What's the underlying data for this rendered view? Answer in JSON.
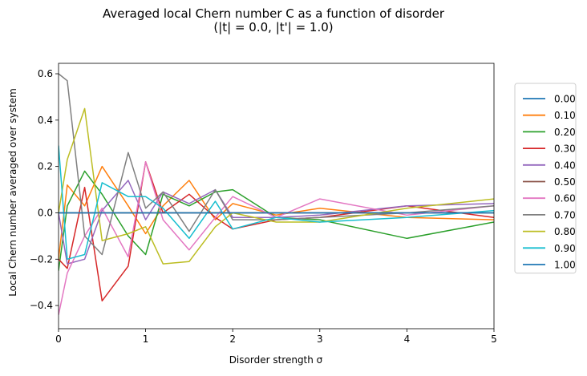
{
  "chart_data": {
    "type": "line",
    "title": "Averaged local Chern number C as a function of disorder",
    "subtitle": "(|t| = 0.0, |t'| = 1.0)",
    "xlabel": "Disorder strength σ",
    "ylabel": "Local Chern number averaged over system",
    "xlim": [
      0,
      5
    ],
    "ylim": [
      -0.5,
      0.645
    ],
    "xticks": [
      "0",
      "1",
      "2",
      "3",
      "4",
      "5"
    ],
    "yticks": [
      "−0.4",
      "−0.2",
      "0.0",
      "0.2",
      "0.4",
      "0.6"
    ],
    "grid": false,
    "legend_position": "right-outside",
    "x": [
      0,
      0.1,
      0.3,
      0.5,
      0.8,
      1.0,
      1.2,
      1.5,
      1.8,
      2.0,
      2.5,
      3.0,
      4.0,
      5.0
    ],
    "series": [
      {
        "name": "0.00",
        "color": "#1f77b4",
        "values": [
          0.0,
          0.0,
          0.0,
          0.0,
          0.0,
          0.0,
          0.0,
          0.0,
          0.0,
          0.0,
          0.0,
          0.0,
          0.0,
          0.0
        ]
      },
      {
        "name": "0.10",
        "color": "#ff7f0e",
        "values": [
          -0.2,
          0.12,
          0.03,
          0.2,
          0.03,
          -0.09,
          0.03,
          0.14,
          -0.03,
          0.04,
          -0.01,
          0.02,
          -0.02,
          -0.03
        ]
      },
      {
        "name": "0.20",
        "color": "#2ca02c",
        "values": [
          -0.25,
          0.03,
          0.18,
          0.08,
          -0.1,
          -0.18,
          0.08,
          0.03,
          0.09,
          0.1,
          -0.02,
          -0.03,
          -0.11,
          -0.04
        ]
      },
      {
        "name": "0.30",
        "color": "#d62728",
        "values": [
          -0.2,
          -0.24,
          0.11,
          -0.38,
          -0.23,
          0.22,
          0.0,
          0.08,
          -0.02,
          -0.07,
          -0.03,
          -0.02,
          0.03,
          -0.02
        ]
      },
      {
        "name": "0.40",
        "color": "#9467bd",
        "values": [
          0.0,
          -0.22,
          -0.2,
          0.01,
          0.14,
          -0.03,
          0.09,
          0.04,
          0.1,
          -0.02,
          -0.02,
          -0.01,
          0.03,
          0.04
        ]
      },
      {
        "name": "0.50",
        "color": "#8c564b",
        "values": [
          0.0,
          0.0,
          0.0,
          0.0,
          0.0,
          0.0,
          0.0,
          0.0,
          0.0,
          0.0,
          0.0,
          0.0,
          0.0,
          0.0
        ]
      },
      {
        "name": "0.60",
        "color": "#e377c2",
        "values": [
          -0.44,
          -0.26,
          -0.1,
          0.02,
          -0.19,
          0.22,
          -0.03,
          -0.16,
          -0.02,
          0.07,
          -0.02,
          0.06,
          -0.01,
          0.03
        ]
      },
      {
        "name": "0.70",
        "color": "#7f7f7f",
        "values": [
          0.6,
          0.57,
          -0.1,
          -0.18,
          0.26,
          0.02,
          0.09,
          -0.08,
          0.1,
          -0.03,
          -0.03,
          -0.02,
          0.0,
          0.03
        ]
      },
      {
        "name": "0.80",
        "color": "#bcbd22",
        "values": [
          0.0,
          0.23,
          0.45,
          -0.12,
          -0.09,
          -0.06,
          -0.22,
          -0.21,
          -0.06,
          0.0,
          -0.04,
          -0.04,
          0.02,
          0.06
        ]
      },
      {
        "name": "0.90",
        "color": "#17becf",
        "values": [
          0.29,
          -0.2,
          -0.18,
          0.13,
          0.07,
          0.07,
          0.02,
          -0.11,
          0.05,
          -0.07,
          -0.02,
          -0.04,
          -0.02,
          0.01
        ]
      },
      {
        "name": "1.00",
        "color": "#1f77b4",
        "values": [
          0.0,
          0.0,
          0.0,
          0.0,
          0.0,
          0.0,
          0.0,
          0.0,
          0.0,
          0.0,
          0.0,
          0.0,
          0.0,
          0.0
        ]
      }
    ]
  }
}
